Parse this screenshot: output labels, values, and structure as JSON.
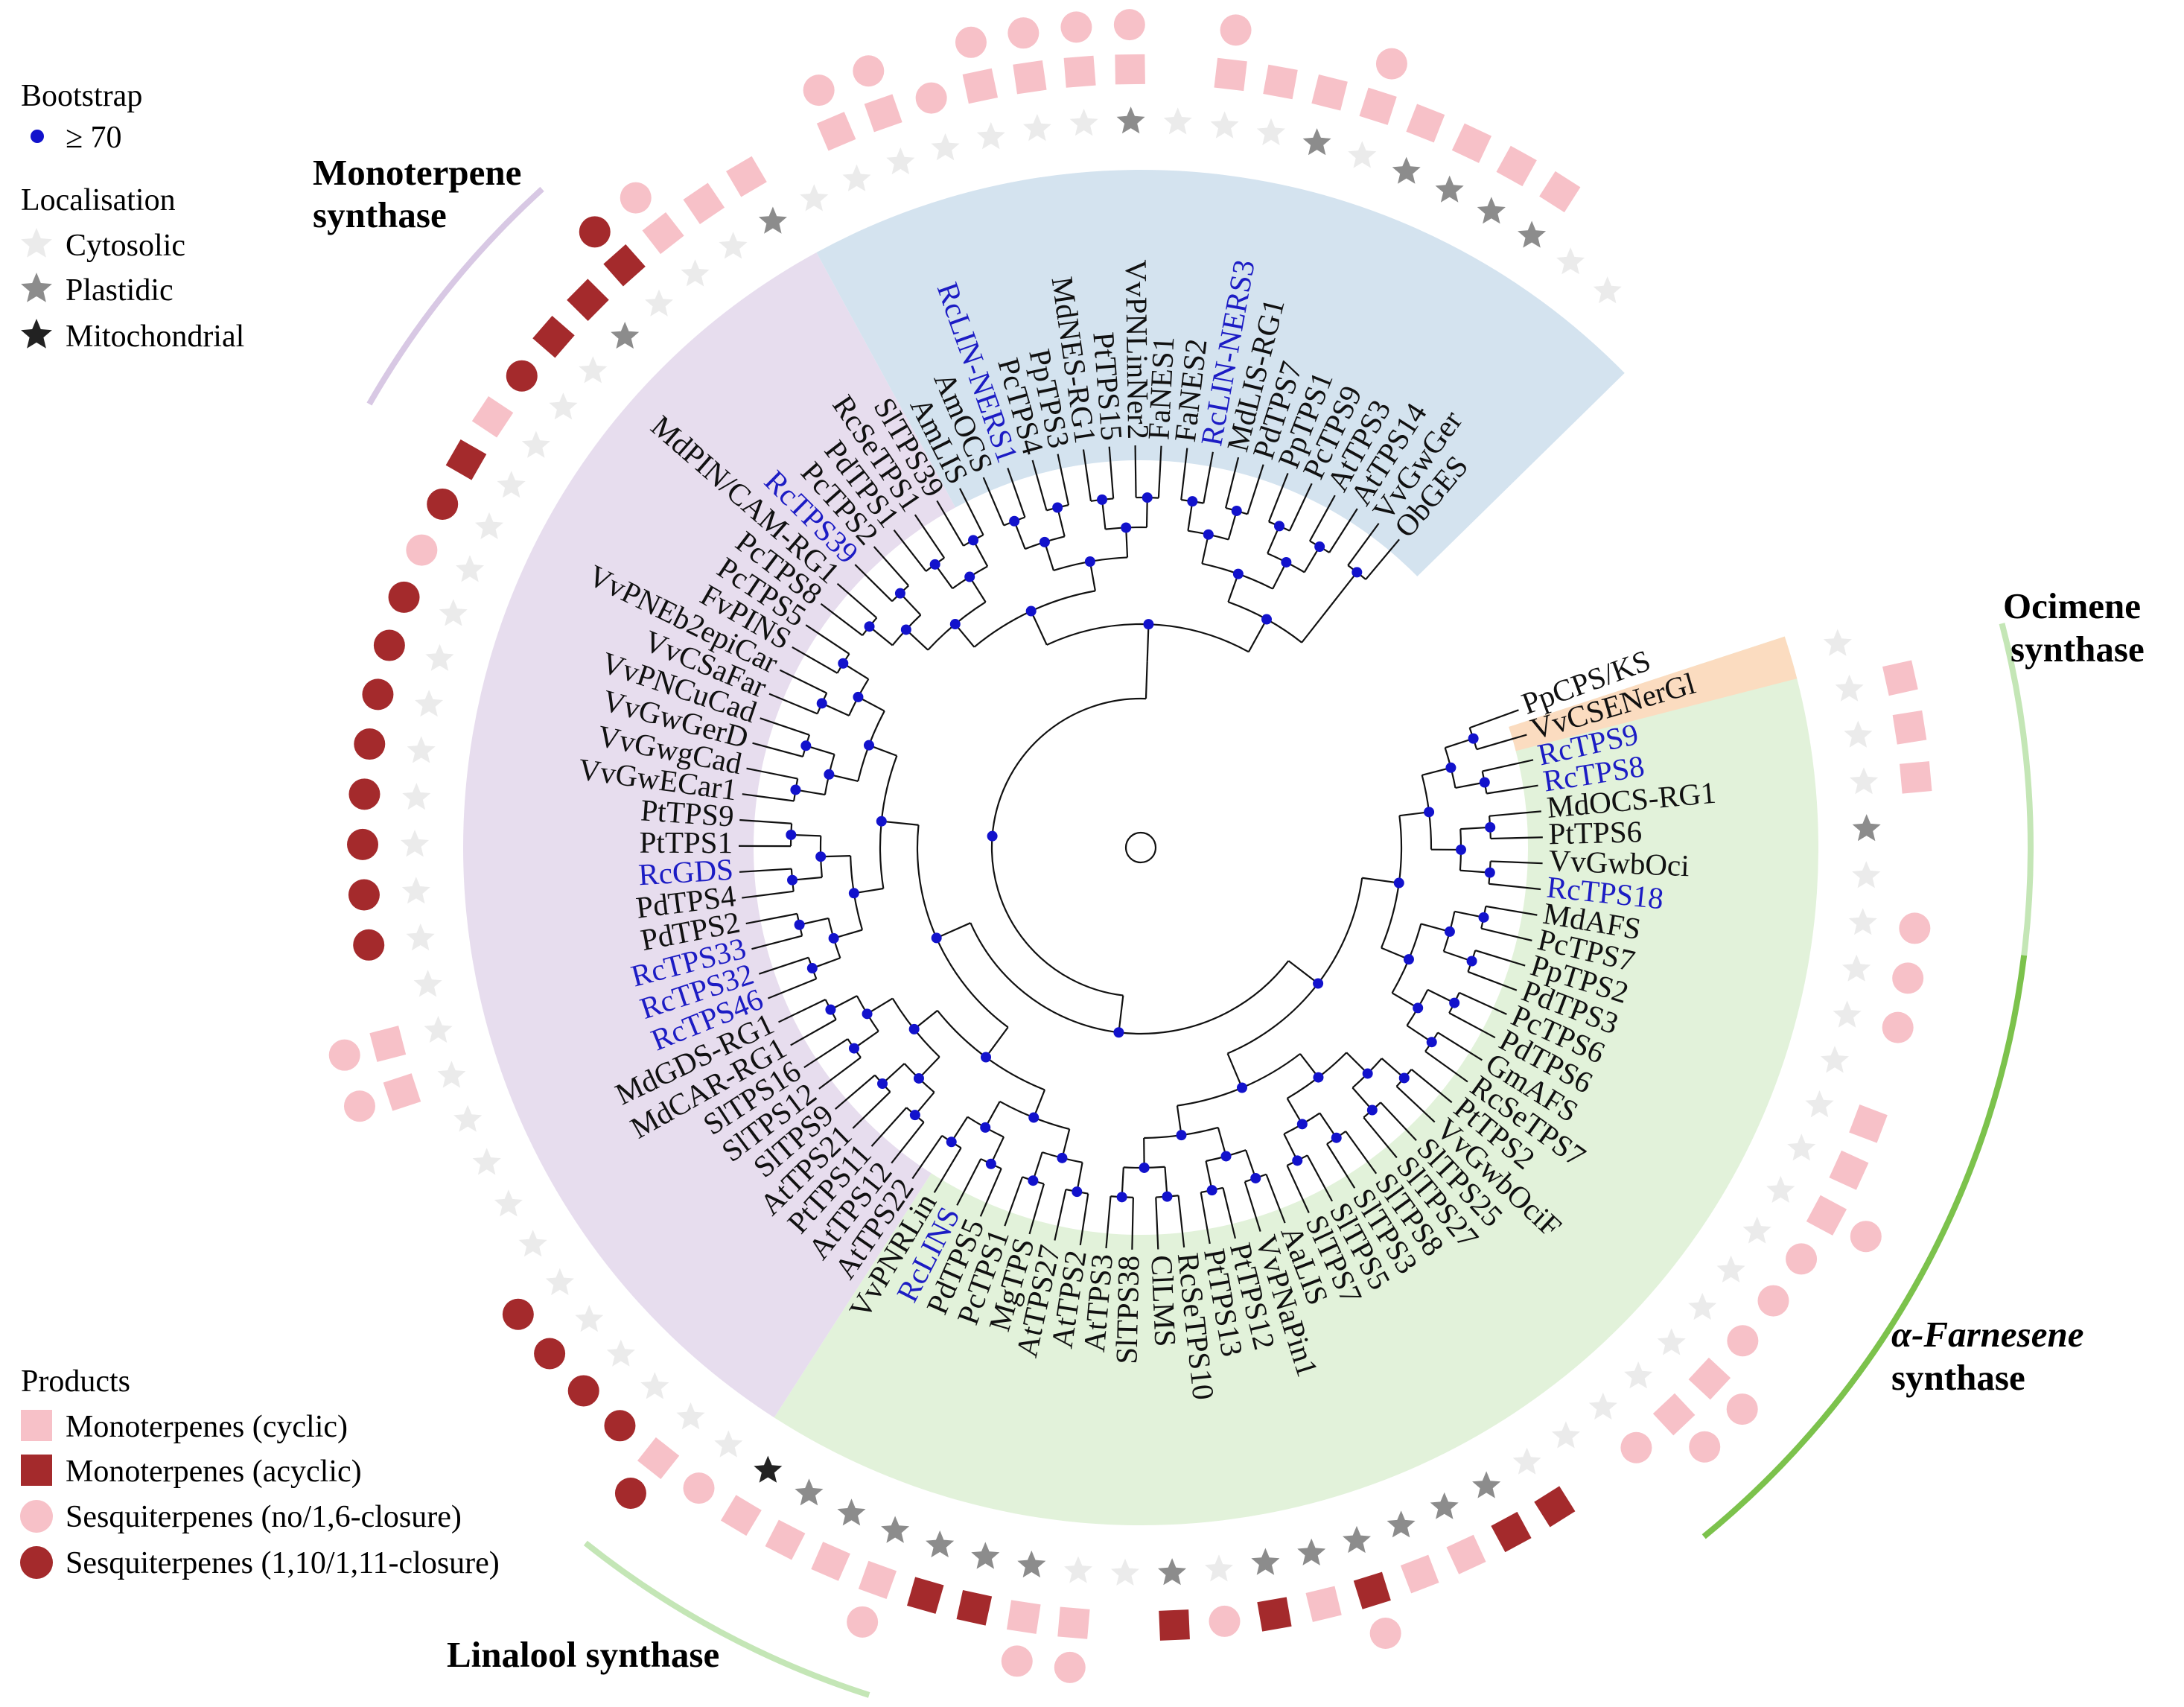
{
  "colors": {
    "mono_cyclic": "#f7c1c8",
    "mono_acyclic": "#a42a2c",
    "sesq_16": "#f7c1c8",
    "sesq_110": "#a42a2c",
    "bootstrap": "#1212cc",
    "rc_label": "#1c1cc4",
    "other_label": "#111111",
    "cytosolic": "#ebebeb",
    "plastidic": "#8c8c8c",
    "mitochondrial": "#222222",
    "sector_mono": "#e7ddee",
    "sector_blue": "#d4e3ef",
    "sector_green": "#e2f2da",
    "sector_orange": "#fbdcc0",
    "arc_mono": "#d8c8e4",
    "arc_lin": "#c4e6b6",
    "arc_oci": "#c4e6b6",
    "arc_far": "#7cc24c"
  },
  "legend": {
    "bootstrap_title": "Bootstrap",
    "bootstrap_item": "≥ 70",
    "localisation_title": "Localisation",
    "cytosolic": "Cytosolic",
    "plastidic": "Plastidic",
    "mitochondrial": "Mitochondrial",
    "products_title": "Products",
    "mono_cyclic": "Monoterpenes (cyclic)",
    "mono_acyclic": "Monoterpenes (acyclic)",
    "sesq_16": "Sesquiterpenes (no/1,6-closure)",
    "sesq_110": "Sesquiterpenes (1,10/1,11-closure)"
  },
  "clades": {
    "mono_line1": "Monoterpene",
    "mono_line2": "synthase",
    "ocimene_line1": "Ocimene",
    "ocimene_line2": "synthase",
    "farnesene_line1": "α-Farnesene",
    "farnesene_line2": "synthase",
    "linalool": "Linalool synthase"
  },
  "tree": {
    "center": "root",
    "leaves": [
      {
        "label": "PpCPS/KS",
        "loc": "none",
        "prod": []
      },
      {
        "label": "VvCSENerGl",
        "loc": "cyto",
        "prod": []
      },
      {
        "label": "RcTPS9",
        "rc": true,
        "loc": "cyto",
        "prod": [
          "mc"
        ]
      },
      {
        "label": "RcTPS8",
        "rc": true,
        "loc": "cyto",
        "prod": [
          "mc"
        ]
      },
      {
        "label": "MdOCS-RG1",
        "loc": "cyto",
        "prod": [
          "mc"
        ]
      },
      {
        "label": "PtTPS6",
        "loc": "plast",
        "prod": []
      },
      {
        "label": "VvGwbOci",
        "loc": "cyto",
        "prod": []
      },
      {
        "label": "RcTPS18",
        "rc": true,
        "loc": "cyto",
        "prod": [
          "s16"
        ]
      },
      {
        "label": "MdAFS",
        "loc": "cyto",
        "prod": [
          "s16"
        ]
      },
      {
        "label": "PcTPS7",
        "loc": "cyto",
        "prod": [
          "s16"
        ]
      },
      {
        "label": "PpTPS2",
        "loc": "cyto",
        "prod": []
      },
      {
        "label": "PdTPS3",
        "loc": "cyto",
        "prod": [
          "mc"
        ]
      },
      {
        "label": "PcTPS6",
        "loc": "cyto",
        "prod": [
          "mc"
        ]
      },
      {
        "label": "PdTPS6",
        "loc": "cyto",
        "prod": [
          "mc",
          "s16"
        ]
      },
      {
        "label": "GmAFS",
        "loc": "cyto",
        "prod": [
          "s16"
        ]
      },
      {
        "label": "RcSeTPS7",
        "loc": "cyto",
        "prod": [
          "s16"
        ]
      },
      {
        "label": "PtTPS2",
        "loc": "cyto",
        "prod": [
          "s16"
        ]
      },
      {
        "label": "VvGwbOciF",
        "loc": "cyto",
        "prod": [
          "mc",
          "s16"
        ]
      },
      {
        "label": "SlTPS25",
        "loc": "cyto",
        "prod": [
          "mc",
          "s16"
        ]
      },
      {
        "label": "SlTPS27",
        "loc": "cyto",
        "prod": [
          "s16"
        ]
      },
      {
        "label": "SlTPS8",
        "loc": "cyto",
        "prod": []
      },
      {
        "label": "SlTPS3",
        "loc": "cyto",
        "prod": [
          "ma"
        ]
      },
      {
        "label": "SlTPS5",
        "loc": "plast",
        "prod": [
          "ma"
        ]
      },
      {
        "label": "SlTPS7",
        "loc": "plast",
        "prod": [
          "mc"
        ]
      },
      {
        "label": "AaLIS",
        "loc": "plast",
        "prod": [
          "mc"
        ]
      },
      {
        "label": "VvPNaPin1",
        "loc": "plast",
        "prod": [
          "ma",
          "s16"
        ]
      },
      {
        "label": "PtTPS12",
        "loc": "plast",
        "prod": [
          "mc"
        ]
      },
      {
        "label": "PtTPS13",
        "loc": "plast",
        "prod": [
          "ma"
        ]
      },
      {
        "label": "RcSeTPS10",
        "loc": "cyto",
        "prod": [
          "s16"
        ]
      },
      {
        "label": "ClLMS",
        "loc": "plast",
        "prod": [
          "ma"
        ]
      },
      {
        "label": "SlTPS38",
        "loc": "cyto",
        "prod": []
      },
      {
        "label": "AtTPS3",
        "loc": "cyto",
        "prod": [
          "mc",
          "s16"
        ]
      },
      {
        "label": "AtTPS2",
        "loc": "plast",
        "prod": [
          "mc",
          "s16"
        ]
      },
      {
        "label": "AtTPS27",
        "loc": "plast",
        "prod": [
          "ma"
        ]
      },
      {
        "label": "MgTPS",
        "loc": "plast",
        "prod": [
          "ma"
        ]
      },
      {
        "label": "PcTPS1",
        "loc": "plast",
        "prod": [
          "mc",
          "s16"
        ]
      },
      {
        "label": "PdTPS5",
        "loc": "plast",
        "prod": [
          "mc"
        ]
      },
      {
        "label": "RcLINS",
        "rc": true,
        "loc": "plast",
        "prod": [
          "mc"
        ]
      },
      {
        "label": "VvPNRLin",
        "loc": "mito",
        "prod": [
          "mc"
        ]
      },
      {
        "label": "AtTPS22",
        "loc": "cyto",
        "prod": [
          "s16"
        ]
      },
      {
        "label": "AtTPS12",
        "loc": "cyto",
        "prod": [
          "mc",
          "s110"
        ]
      },
      {
        "label": "PtTPS11",
        "loc": "cyto",
        "prod": [
          "s110"
        ]
      },
      {
        "label": "AtTPS21",
        "loc": "cyto",
        "prod": [
          "s110"
        ]
      },
      {
        "label": "SlTPS9",
        "loc": "cyto",
        "prod": [
          "s110"
        ]
      },
      {
        "label": "SlTPS12",
        "loc": "cyto",
        "prod": [
          "s110"
        ]
      },
      {
        "label": "SlTPS16",
        "loc": "cyto",
        "prod": []
      },
      {
        "label": "MdCAR-RG1",
        "loc": "cyto",
        "prod": []
      },
      {
        "label": "MdGDS-RG1",
        "loc": "cyto",
        "prod": []
      },
      {
        "label": "RcTPS46",
        "rc": true,
        "loc": "cyto",
        "prod": []
      },
      {
        "label": "RcTPS32",
        "rc": true,
        "loc": "cyto",
        "prod": [
          "mc",
          "s16"
        ]
      },
      {
        "label": "RcTPS33",
        "rc": true,
        "loc": "cyto",
        "prod": [
          "mc",
          "s16"
        ]
      },
      {
        "label": "PdTPS2",
        "loc": "cyto",
        "prod": []
      },
      {
        "label": "PdTPS4",
        "loc": "cyto",
        "prod": [
          "s110"
        ]
      },
      {
        "label": "RcGDS",
        "rc": true,
        "loc": "cyto",
        "prod": [
          "s110"
        ]
      },
      {
        "label": "PtTPS1",
        "loc": "cyto",
        "prod": [
          "s110"
        ]
      },
      {
        "label": "PtTPS9",
        "loc": "cyto",
        "prod": [
          "s110"
        ]
      },
      {
        "label": "VvGwECar1",
        "loc": "cyto",
        "prod": [
          "s110"
        ]
      },
      {
        "label": "VvGwgCad",
        "loc": "cyto",
        "prod": [
          "s110"
        ]
      },
      {
        "label": "VvGwGerD",
        "loc": "cyto",
        "prod": [
          "s110"
        ]
      },
      {
        "label": "VvPNCuCad",
        "loc": "cyto",
        "prod": [
          "s110"
        ]
      },
      {
        "label": "VvCSaFar",
        "loc": "cyto",
        "prod": [
          "s16"
        ]
      },
      {
        "label": "VvPNEb2epiCar",
        "loc": "cyto",
        "prod": [
          "s110"
        ]
      },
      {
        "label": "FvPINS",
        "loc": "cyto",
        "prod": [
          "ma"
        ]
      },
      {
        "label": "PcTPS5",
        "loc": "cyto",
        "prod": [
          "mc"
        ]
      },
      {
        "label": "PcTPS8",
        "loc": "cyto",
        "prod": [
          "s110"
        ]
      },
      {
        "label": "MdPIN/CAM-RG1",
        "loc": "cyto",
        "prod": [
          "ma"
        ]
      },
      {
        "label": "RcTPS39",
        "rc": true,
        "loc": "plast",
        "prod": [
          "ma"
        ]
      },
      {
        "label": "PcTPS2",
        "loc": "cyto",
        "prod": [
          "ma",
          "s110"
        ]
      },
      {
        "label": "PdTPS1",
        "loc": "cyto",
        "prod": [
          "mc",
          "s16"
        ]
      },
      {
        "label": "RcSeTPS1",
        "loc": "cyto",
        "prod": [
          "mc"
        ]
      },
      {
        "label": "SlTPS39",
        "loc": "plast",
        "prod": [
          "mc"
        ]
      },
      {
        "label": "AmLIS",
        "loc": "cyto",
        "prod": []
      },
      {
        "label": "AmOCS",
        "loc": "cyto",
        "prod": [
          "mc",
          "s16"
        ]
      },
      {
        "label": "RcLIN-NERS1",
        "rc": true,
        "loc": "cyto",
        "prod": [
          "mc",
          "s16"
        ]
      },
      {
        "label": "PcTPS4",
        "loc": "cyto",
        "prod": [
          "s16"
        ]
      },
      {
        "label": "PpTPS3",
        "loc": "cyto",
        "prod": [
          "mc",
          "s16"
        ]
      },
      {
        "label": "MdNES-RG1",
        "loc": "cyto",
        "prod": [
          "mc",
          "s16"
        ]
      },
      {
        "label": "PtTPS15",
        "loc": "cyto",
        "prod": [
          "mc",
          "s16"
        ]
      },
      {
        "label": "VvPNLinNer2",
        "loc": "plast",
        "prod": [
          "mc",
          "s16"
        ]
      },
      {
        "label": "FaNES1",
        "loc": "cyto",
        "prod": []
      },
      {
        "label": "FaNES2",
        "loc": "cyto",
        "prod": [
          "mc",
          "s16"
        ]
      },
      {
        "label": "RcLIN-NERS3",
        "rc": true,
        "loc": "cyto",
        "prod": [
          "mc"
        ]
      },
      {
        "label": "MdLIS-RG1",
        "loc": "plast",
        "prod": [
          "mc"
        ]
      },
      {
        "label": "PdTPS7",
        "loc": "cyto",
        "prod": [
          "mc",
          "s16"
        ]
      },
      {
        "label": "PpTPS1",
        "loc": "plast",
        "prod": [
          "mc"
        ]
      },
      {
        "label": "PcTPS9",
        "loc": "plast",
        "prod": [
          "mc"
        ]
      },
      {
        "label": "AtTPS3",
        "loc": "plast",
        "prod": [
          "mc"
        ]
      },
      {
        "label": "AtTPS14",
        "loc": "plast",
        "prod": [
          "mc"
        ]
      },
      {
        "label": "VvGwGer",
        "loc": "cyto",
        "prod": []
      },
      {
        "label": "ObGES",
        "loc": "cyto",
        "prod": []
      }
    ]
  }
}
